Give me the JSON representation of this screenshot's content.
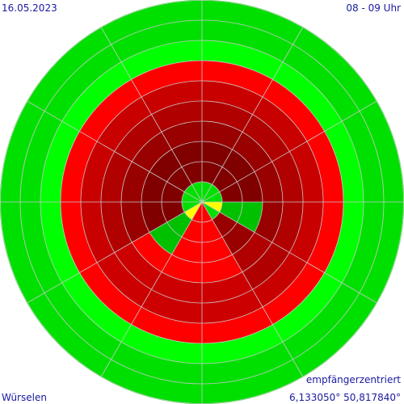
{
  "chart_data": {
    "type": "polar",
    "date": "16.05.2023",
    "time": "08 - 09 Uhr",
    "location": "Würselen",
    "mode": "empfängerzentriert",
    "coordinates": "6,133050° 50,817840°",
    "grid": true,
    "sectors": [
      [
        "#00e000",
        "#800000",
        "#800000",
        "#990000",
        "#b00000",
        "#c80000",
        "#ff0000",
        "#00ff00",
        "#00e000",
        "#00e000"
      ],
      [
        "#00e000",
        "#800000",
        "#800000",
        "#990000",
        "#b00000",
        "#c80000",
        "#ff0000",
        "#00ff00",
        "#00e000",
        "#00e000"
      ],
      [
        "#00e000",
        "#800000",
        "#800000",
        "#990000",
        "#b00000",
        "#c80000",
        "#ff0000",
        "#00ff00",
        "#00e000",
        "#00e000"
      ],
      [
        "#ffff00",
        "#00c000",
        "#00c000",
        "#990000",
        "#b00000",
        "#c80000",
        "#ff0000",
        "#00ff00",
        "#00e000",
        "#00e000"
      ],
      [
        "#00e000",
        "#990000",
        "#990000",
        "#b00000",
        "#b00000",
        "#c80000",
        "#ff0000",
        "#00ff00",
        "#00e000",
        "#00e000"
      ],
      [
        "#ff0000",
        "#ff0000",
        "#ff0000",
        "#ff0000",
        "#cc0000",
        "#cc0000",
        "#ff0000",
        "#00ff00",
        "#00e000",
        "#00e000"
      ],
      [
        "#ff0000",
        "#ff0000",
        "#ff0000",
        "#ff0000",
        "#cc0000",
        "#cc0000",
        "#ff0000",
        "#00ff00",
        "#00e000",
        "#00e000"
      ],
      [
        "#ffff00",
        "#00c000",
        "#00c000",
        "#ff0000",
        "#cc0000",
        "#cc0000",
        "#ff0000",
        "#00ff00",
        "#00e000",
        "#00e000"
      ],
      [
        "#00e000",
        "#800000",
        "#800000",
        "#990000",
        "#b00000",
        "#c80000",
        "#ff0000",
        "#00ff00",
        "#00e000",
        "#00e000"
      ],
      [
        "#00e000",
        "#800000",
        "#800000",
        "#990000",
        "#b00000",
        "#c80000",
        "#ff0000",
        "#00ff00",
        "#00e000",
        "#00e000"
      ],
      [
        "#00e000",
        "#800000",
        "#800000",
        "#990000",
        "#b00000",
        "#c80000",
        "#ff0000",
        "#00ff00",
        "#00e000",
        "#00e000"
      ],
      [
        "#00e000",
        "#800000",
        "#800000",
        "#990000",
        "#b00000",
        "#c80000",
        "#ff0000",
        "#00ff00",
        "#00e000",
        "#00e000"
      ]
    ]
  }
}
